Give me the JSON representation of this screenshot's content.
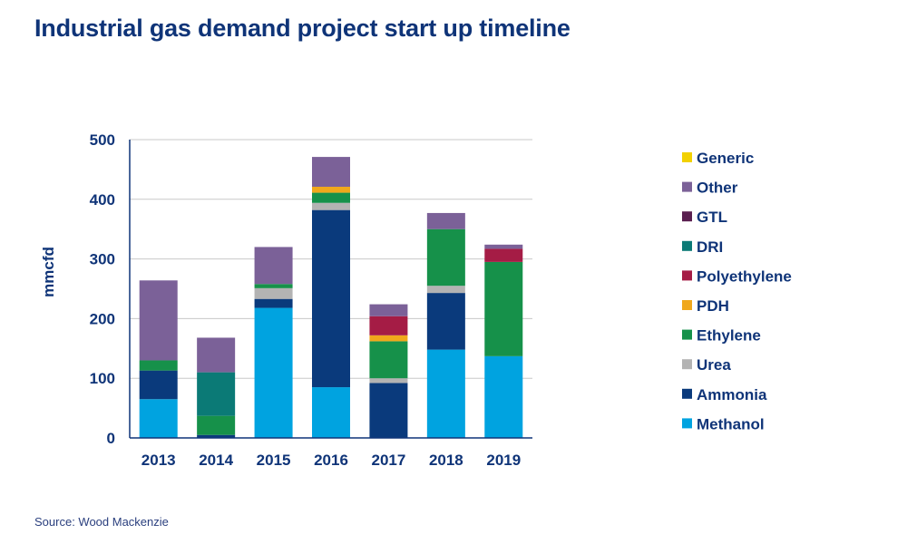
{
  "header": {
    "title": "Industrial gas demand project start up timeline"
  },
  "footer": {
    "source": "Source: Wood Mackenzie"
  },
  "chart_data": {
    "type": "bar",
    "stacked": true,
    "title": "Industrial gas demand project start up timeline",
    "xlabel": "",
    "ylabel": "mmcfd",
    "ylim": [
      0,
      500
    ],
    "yticks": [
      0,
      100,
      200,
      300,
      400,
      500
    ],
    "grid": true,
    "legend_position": "right",
    "categories": [
      "2013",
      "2014",
      "2015",
      "2016",
      "2017",
      "2018",
      "2019"
    ],
    "series": [
      {
        "name": "Methanol",
        "color": "#00a3e0",
        "values": [
          65,
          0,
          218,
          85,
          0,
          148,
          137
        ]
      },
      {
        "name": "Ammonia",
        "color": "#0a3a7c",
        "values": [
          48,
          5,
          15,
          297,
          92,
          95,
          0
        ]
      },
      {
        "name": "Urea",
        "color": "#b3b3b3",
        "values": [
          0,
          0,
          18,
          12,
          8,
          12,
          0
        ]
      },
      {
        "name": "Ethylene",
        "color": "#16914a",
        "values": [
          17,
          32,
          7,
          17,
          62,
          95,
          158
        ]
      },
      {
        "name": "PDH",
        "color": "#f0a81c",
        "values": [
          0,
          0,
          0,
          10,
          10,
          0,
          0
        ]
      },
      {
        "name": "Polyethylene",
        "color": "#a51c45",
        "values": [
          0,
          0,
          0,
          0,
          32,
          0,
          22
        ]
      },
      {
        "name": "DRI",
        "color": "#0b7a76",
        "values": [
          0,
          73,
          0,
          0,
          0,
          0,
          0
        ]
      },
      {
        "name": "GTL",
        "color": "#5a1f50",
        "values": [
          0,
          0,
          0,
          0,
          0,
          0,
          0
        ]
      },
      {
        "name": "Other",
        "color": "#7b6198",
        "values": [
          134,
          58,
          62,
          50,
          20,
          27,
          7
        ]
      },
      {
        "name": "Generic",
        "color": "#f2d100",
        "values": [
          0,
          0,
          0,
          0,
          0,
          0,
          0
        ]
      }
    ],
    "legend_order": [
      "Generic",
      "Other",
      "GTL",
      "DRI",
      "Polyethylene",
      "PDH",
      "Ethylene",
      "Urea",
      "Ammonia",
      "Methanol"
    ],
    "axis_color": "#0f3478",
    "grid_color": "#c8c8c8"
  }
}
